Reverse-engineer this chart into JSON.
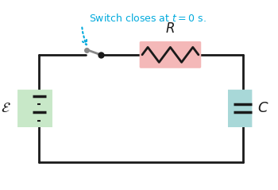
{
  "bg_color": "#ffffff",
  "circuit_color": "#1a1a1a",
  "resistor_bg": "#f4b8b8",
  "capacitor_bg": "#a8d8d8",
  "battery_bg": "#c8e8c8",
  "switch_annotation_color": "#00aadd",
  "annotation_text": "Switch closes at $t = 0$ s.",
  "label_E": "$\\mathcal{E}$",
  "label_R": "$R$",
  "label_C": "$C$",
  "line_width": 2.0,
  "fig_width": 3.5,
  "fig_height": 2.39
}
